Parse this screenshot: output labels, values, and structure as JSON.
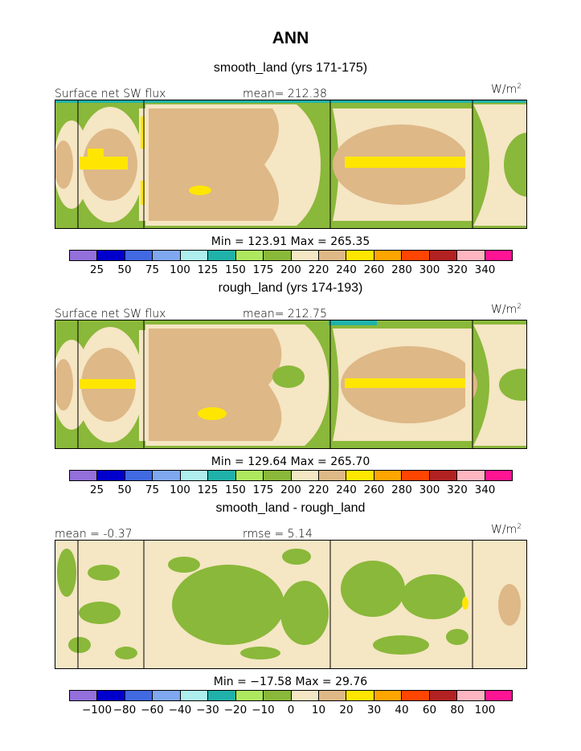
{
  "header": {
    "title": "ANN"
  },
  "colors": {
    "palette": [
      "#9370DB",
      "#0000CD",
      "#4169E1",
      "#7FA8F0",
      "#AFEEEE",
      "#20B2AA",
      "#ADE85F",
      "#8AB83A",
      "#F5E6C4",
      "#DEB887",
      "#FFE600",
      "#FFA500",
      "#FF4500",
      "#B22222",
      "#FFB6C1",
      "#FF1493"
    ]
  },
  "panels": [
    {
      "case_title": "smooth_land (yrs 171-175)",
      "left_label": "Surface net SW flux",
      "mid_label": "mean= 212.38",
      "units": "W/m",
      "units_sup": "2",
      "minmax": "Min = 123.91 Max = 265.35",
      "ticks": [
        "25",
        "50",
        "75",
        "100",
        "125",
        "150",
        "175",
        "200",
        "220",
        "240",
        "260",
        "280",
        "300",
        "320",
        "340"
      ]
    },
    {
      "case_title": "rough_land (yrs 174-193)",
      "left_label": "Surface net SW flux",
      "mid_label": "mean= 212.75",
      "units": "W/m",
      "units_sup": "2",
      "minmax": "Min = 129.64 Max = 265.70",
      "ticks": [
        "25",
        "50",
        "75",
        "100",
        "125",
        "150",
        "175",
        "200",
        "220",
        "240",
        "260",
        "280",
        "300",
        "320",
        "340"
      ]
    },
    {
      "case_title": "smooth_land - rough_land",
      "left_label": "mean =   -0.37",
      "mid_label": "rmse =    5.14",
      "units": "W/m",
      "units_sup": "2",
      "minmax": "Min = −17.58 Max =  29.76",
      "ticks": [
        "−100",
        "−80",
        "−60",
        "−40",
        "−30",
        "−20",
        "−10",
        "0",
        "10",
        "20",
        "30",
        "40",
        "60",
        "80",
        "100"
      ]
    }
  ]
}
